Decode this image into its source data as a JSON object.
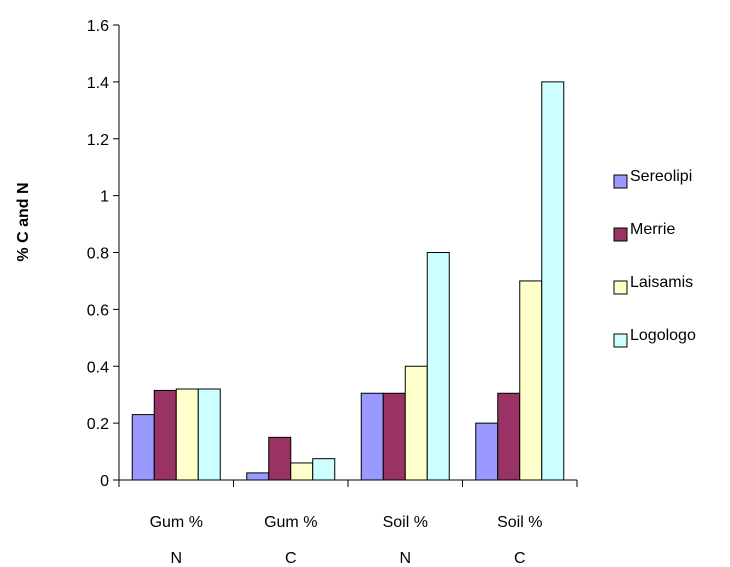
{
  "chart_data": {
    "type": "bar",
    "ylabel": "% C and N",
    "xlabel": "",
    "ylim": [
      0,
      1.6
    ],
    "yticks": [
      "0",
      "0.2",
      "0.4",
      "0.6",
      "0.8",
      "1",
      "1.2",
      "1.4",
      "1.6"
    ],
    "categories": [
      {
        "line1": "Gum %",
        "line2": "N"
      },
      {
        "line1": "Gum %",
        "line2": "C"
      },
      {
        "line1": "Soil %",
        "line2": "N"
      },
      {
        "line1": "Soil %",
        "line2": "C"
      }
    ],
    "series": [
      {
        "name": "Sereolipi",
        "color": "#9999ff",
        "values": [
          0.23,
          0.025,
          0.305,
          0.2
        ]
      },
      {
        "name": "Merrie",
        "color": "#993366",
        "values": [
          0.315,
          0.15,
          0.305,
          0.305
        ]
      },
      {
        "name": "Laisamis",
        "color": "#ffffcc",
        "values": [
          0.32,
          0.06,
          0.4,
          0.7
        ]
      },
      {
        "name": "Logologo",
        "color": "#ccffff",
        "values": [
          0.32,
          0.075,
          0.8,
          1.4
        ]
      }
    ],
    "grid": false,
    "legend_position": "right"
  }
}
